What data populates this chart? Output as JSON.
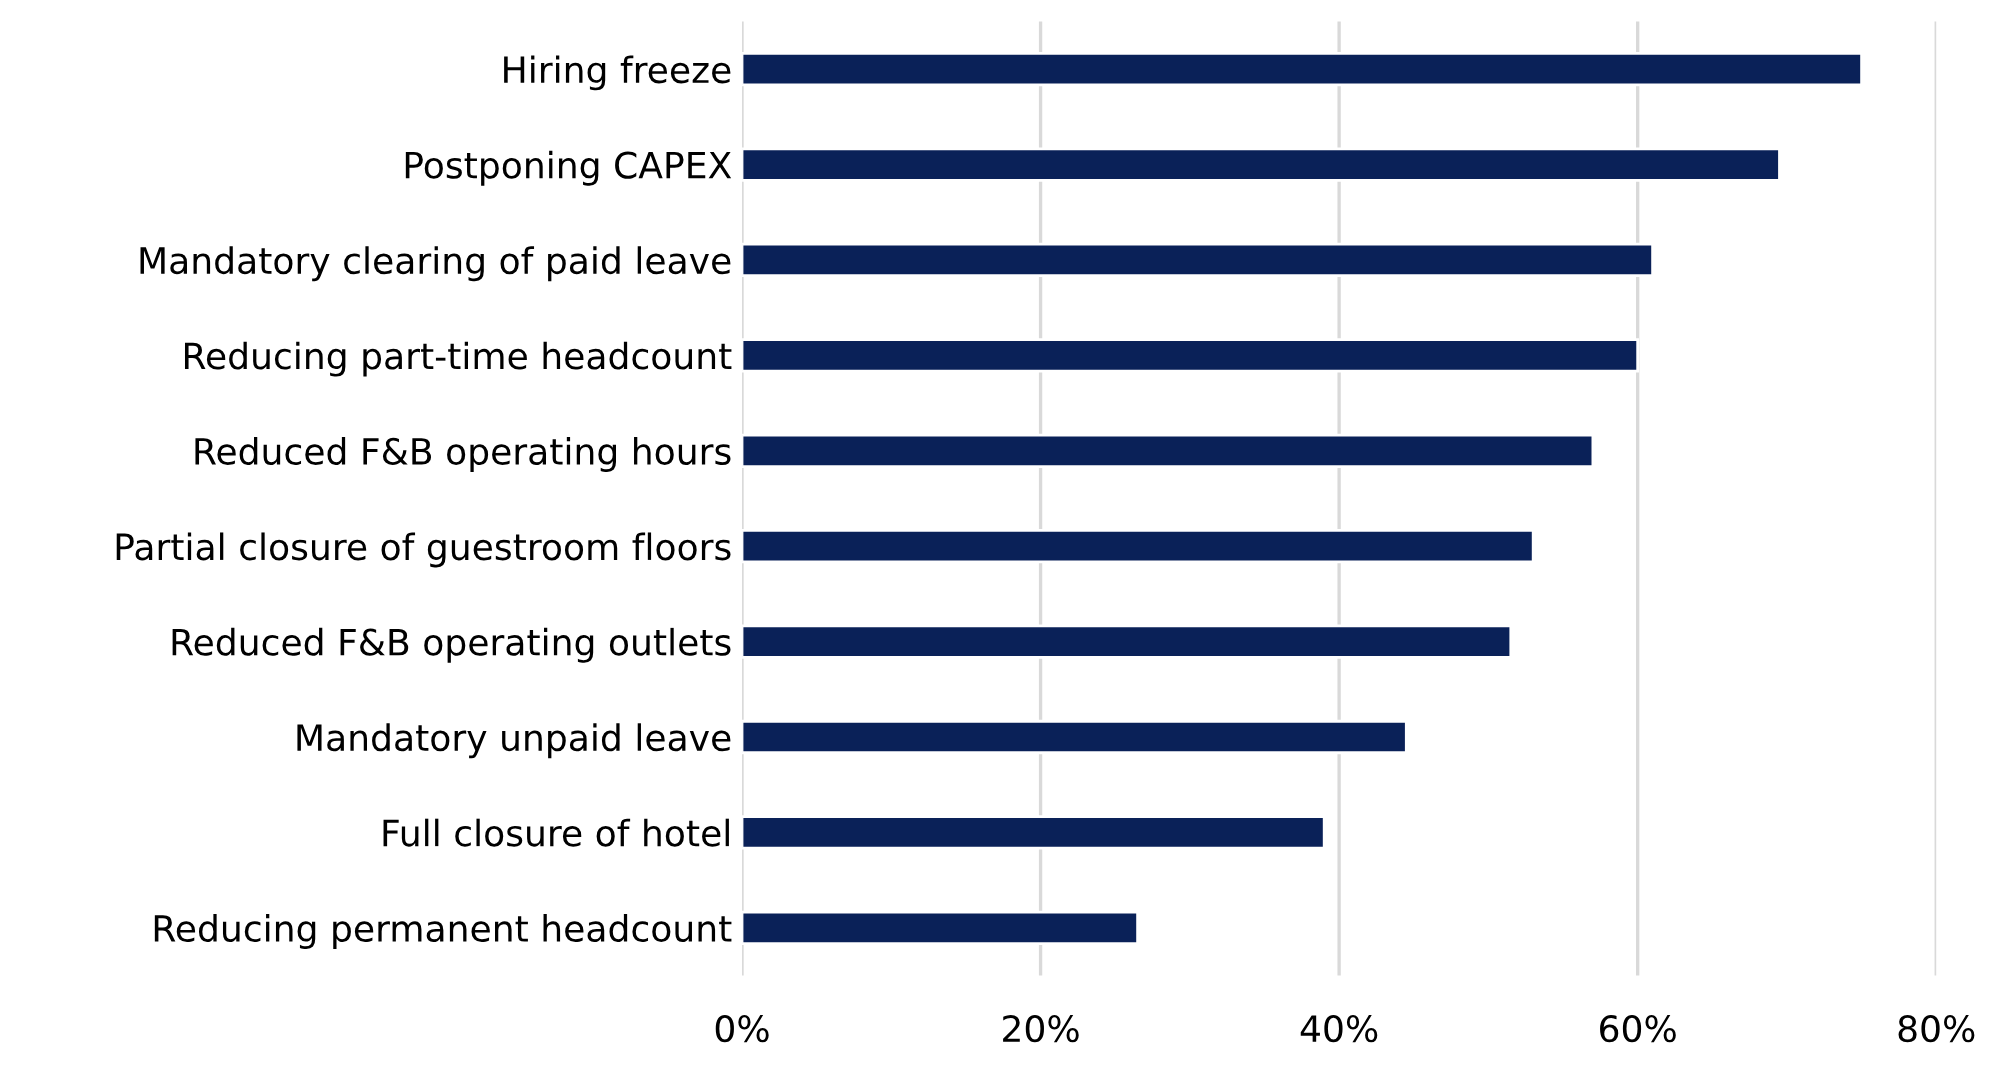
{
  "chart_data": {
    "type": "bar",
    "orientation": "horizontal",
    "categories": [
      "Hiring freeze",
      "Postponing CAPEX",
      "Mandatory clearing of paid leave",
      "Reducing part-time headcount",
      "Reduced F&B operating hours",
      "Partial closure of guestroom floors",
      "Reduced F&B operating outlets",
      "Mandatory unpaid leave",
      "Full closure of hotel",
      "Reducing permanent headcount"
    ],
    "values": [
      75,
      69.5,
      61,
      60,
      57,
      53,
      51.5,
      44.5,
      39,
      26.5
    ],
    "color": "#0a2158",
    "xlim": [
      0,
      80
    ],
    "xticks": [
      {
        "value": 0,
        "label": "0%"
      },
      {
        "value": 20,
        "label": "20%"
      },
      {
        "value": 40,
        "label": "40%"
      },
      {
        "value": 60,
        "label": "60%"
      },
      {
        "value": 80,
        "label": "80%"
      }
    ],
    "grid": "x",
    "legend": false
  }
}
